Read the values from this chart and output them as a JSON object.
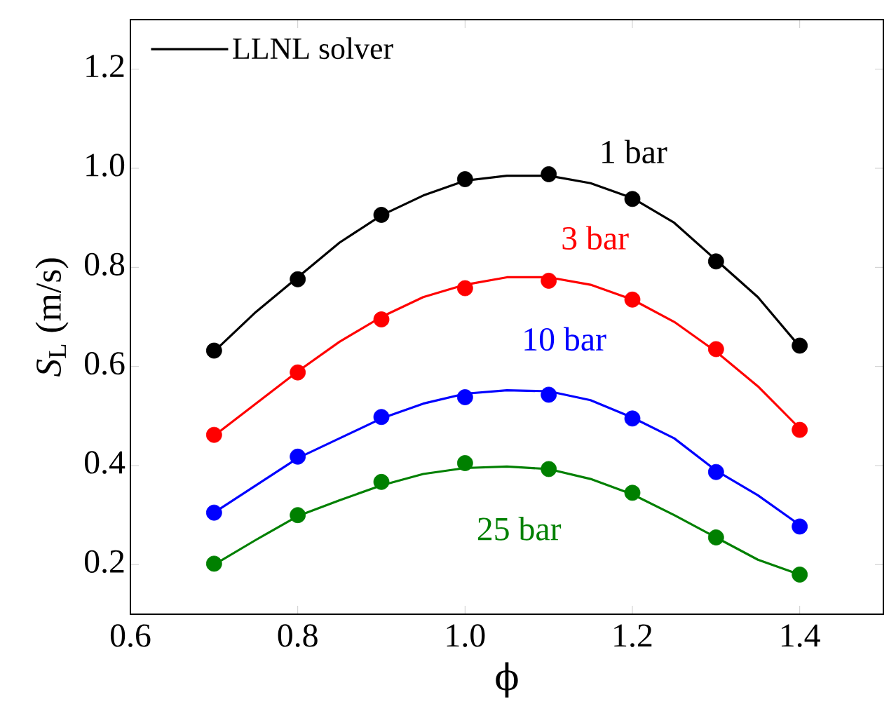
{
  "chart_data": {
    "type": "line",
    "xlabel": "ϕ",
    "ylabel": "*S*$_{L}$ (m/s)",
    "xlim": [
      0.6,
      1.5
    ],
    "ylim": [
      0.1,
      1.3
    ],
    "xticks": [
      0.6,
      0.8,
      {
        "value": 1.0,
        "label": "1.0"
      },
      1.2,
      1.4
    ],
    "yticks": [
      0.2,
      0.4,
      0.6,
      0.8,
      {
        "value": 1.0,
        "label": "1.0"
      },
      1.2
    ],
    "legend": "top left",
    "grid": false,
    "series": [
      {
        "name": "LLNL solver",
        "line_style": "solid",
        "color": "#000000",
        "x": [
          0.7,
          0.75,
          0.8,
          0.85,
          0.9,
          0.95,
          1.0,
          1.05,
          1.1,
          1.15,
          1.2,
          1.25,
          1.3,
          1.35,
          1.4
        ],
        "values": [
          0.63,
          0.71,
          0.78,
          0.85,
          0.905,
          0.945,
          0.975,
          0.985,
          0.985,
          0.97,
          0.94,
          0.89,
          0.815,
          0.74,
          0.64
        ]
      },
      {
        "line_style": "solid",
        "color": "#ff0000",
        "x": [
          0.7,
          0.75,
          0.8,
          0.85,
          0.9,
          0.95,
          1.0,
          1.05,
          1.1,
          1.15,
          1.2,
          1.25,
          1.3,
          1.35,
          1.4
        ],
        "values": [
          0.46,
          0.525,
          0.59,
          0.65,
          0.7,
          0.74,
          0.765,
          0.78,
          0.78,
          0.765,
          0.735,
          0.69,
          0.63,
          0.56,
          0.475
        ]
      },
      {
        "line_style": "solid",
        "color": "#0000ff",
        "x": [
          0.7,
          0.75,
          0.8,
          0.85,
          0.9,
          0.95,
          1.0,
          1.05,
          1.1,
          1.15,
          1.2,
          1.25,
          1.3,
          1.35,
          1.4
        ],
        "values": [
          0.305,
          0.36,
          0.415,
          0.455,
          0.495,
          0.525,
          0.545,
          0.552,
          0.55,
          0.532,
          0.497,
          0.455,
          0.39,
          0.34,
          0.28
        ]
      },
      {
        "line_style": "solid",
        "color": "#008000",
        "x": [
          0.7,
          0.75,
          0.8,
          0.85,
          0.9,
          0.95,
          1.0,
          1.05,
          1.1,
          1.15,
          1.2,
          1.25,
          1.3,
          1.35,
          1.4
        ],
        "values": [
          0.2,
          0.25,
          0.298,
          0.33,
          0.36,
          0.383,
          0.395,
          0.398,
          0.393,
          0.373,
          0.342,
          0.3,
          0.255,
          0.21,
          0.18
        ]
      },
      {
        "type": "scatter",
        "color": "#000000",
        "x": [
          0.7,
          0.8,
          0.9,
          1.0,
          1.1,
          1.2,
          1.3,
          1.4
        ],
        "values": [
          0.632,
          0.776,
          0.906,
          0.978,
          0.988,
          0.938,
          0.812,
          0.642
        ]
      },
      {
        "type": "scatter",
        "color": "#ff0000",
        "x": [
          0.7,
          0.8,
          0.9,
          1.0,
          1.1,
          1.2,
          1.3,
          1.4
        ],
        "values": [
          0.462,
          0.588,
          0.695,
          0.758,
          0.773,
          0.735,
          0.635,
          0.472
        ]
      },
      {
        "type": "scatter",
        "color": "#0000ff",
        "x": [
          0.7,
          0.8,
          0.9,
          1.0,
          1.1,
          1.2,
          1.3,
          1.4
        ],
        "values": [
          0.305,
          0.418,
          0.498,
          0.538,
          0.543,
          0.495,
          0.387,
          0.277
        ]
      },
      {
        "type": "scatter",
        "color": "#008000",
        "x": [
          0.7,
          0.8,
          0.9,
          1.0,
          1.1,
          1.2,
          1.3,
          1.4
        ],
        "values": [
          0.202,
          0.3,
          0.367,
          0.405,
          0.393,
          0.345,
          0.255,
          0.18
        ]
      }
    ],
    "annotations": [
      "1 bar",
      "3 bar",
      "10 bar",
      "25 bar"
    ]
  }
}
